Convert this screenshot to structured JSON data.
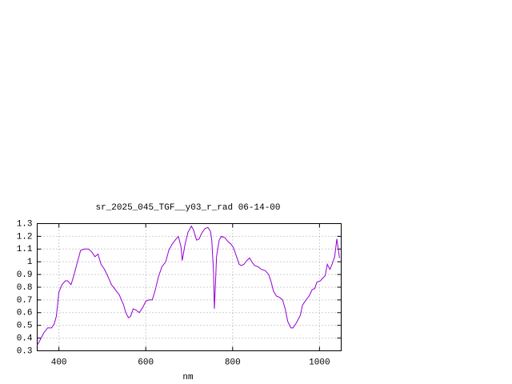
{
  "chart_data": {
    "type": "line",
    "title": "sr_2025_045_TGF__y03_r_rad 06-14-00",
    "x_label": "nm",
    "xlim": [
      350,
      1050
    ],
    "xticks": [
      400,
      600,
      800,
      1000
    ],
    "ylim": [
      0.3,
      1.3
    ],
    "yticks": [
      0.3,
      0.4,
      0.5,
      0.6,
      0.7,
      0.8,
      0.9,
      1,
      1.1,
      1.2,
      1.3
    ],
    "grid": true,
    "series": [
      {
        "color": "#9400d3",
        "x": [
          350,
          356,
          365,
          374,
          383,
          389,
          394,
          400,
          407,
          415,
          420,
          428,
          435,
          442,
          450,
          459,
          468,
          475,
          483,
          490,
          497,
          505,
          512,
          521,
          530,
          539,
          549,
          554,
          560,
          565,
          571,
          578,
          585,
          593,
          600,
          607,
          615,
          622,
          629,
          637,
          646,
          653,
          661,
          670,
          675,
          681,
          684,
          690,
          697,
          705,
          710,
          717,
          723,
          728,
          736,
          743,
          749,
          752,
          756,
          758,
          760,
          763,
          769,
          774,
          782,
          789,
          796,
          802,
          809,
          815,
          820,
          826,
          833,
          839,
          846,
          851,
          859,
          866,
          875,
          883,
          888,
          894,
          901,
          908,
          915,
          921,
          927,
          934,
          939,
          945,
          950,
          956,
          961,
          969,
          976,
          983,
          989,
          994,
          1002,
          1007,
          1013,
          1018,
          1024,
          1029,
          1035,
          1040,
          1046
        ],
        "values": [
          0.344,
          0.38,
          0.44,
          0.48,
          0.48,
          0.51,
          0.57,
          0.76,
          0.82,
          0.85,
          0.85,
          0.82,
          0.9,
          0.99,
          1.09,
          1.1,
          1.1,
          1.08,
          1.04,
          1.06,
          0.98,
          0.94,
          0.89,
          0.82,
          0.78,
          0.74,
          0.66,
          0.6,
          0.56,
          0.57,
          0.63,
          0.62,
          0.6,
          0.64,
          0.69,
          0.7,
          0.7,
          0.78,
          0.88,
          0.96,
          1.0,
          1.09,
          1.14,
          1.18,
          1.2,
          1.12,
          1.01,
          1.13,
          1.23,
          1.28,
          1.25,
          1.17,
          1.18,
          1.22,
          1.26,
          1.27,
          1.24,
          1.17,
          0.92,
          0.63,
          0.79,
          1.04,
          1.17,
          1.2,
          1.19,
          1.16,
          1.14,
          1.11,
          1.04,
          0.98,
          0.97,
          0.98,
          1.01,
          1.03,
          0.99,
          0.97,
          0.96,
          0.94,
          0.93,
          0.9,
          0.85,
          0.77,
          0.73,
          0.72,
          0.7,
          0.63,
          0.53,
          0.48,
          0.48,
          0.51,
          0.54,
          0.58,
          0.66,
          0.7,
          0.73,
          0.78,
          0.79,
          0.84,
          0.85,
          0.87,
          0.89,
          0.98,
          0.94,
          0.98,
          1.04,
          1.18,
          1.03
        ]
      }
    ]
  }
}
